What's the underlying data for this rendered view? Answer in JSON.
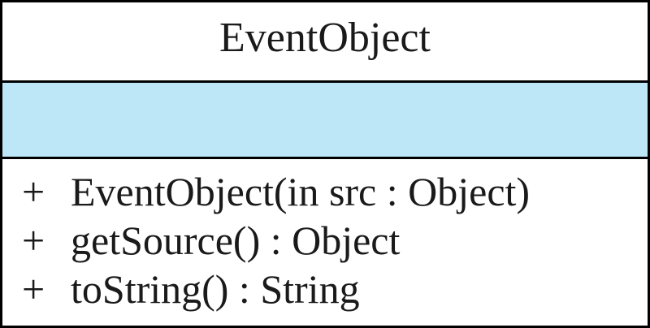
{
  "uml_class": {
    "name": "EventObject",
    "attributes": [],
    "operations": [
      {
        "visibility": "+",
        "signature": "EventObject(in src : Object)"
      },
      {
        "visibility": "+",
        "signature": "getSource() : Object"
      },
      {
        "visibility": "+",
        "signature": "toString() : String"
      }
    ]
  },
  "colors": {
    "attribute_fill": "#bde6f7",
    "border": "#000000",
    "text": "#1a1a1a"
  }
}
